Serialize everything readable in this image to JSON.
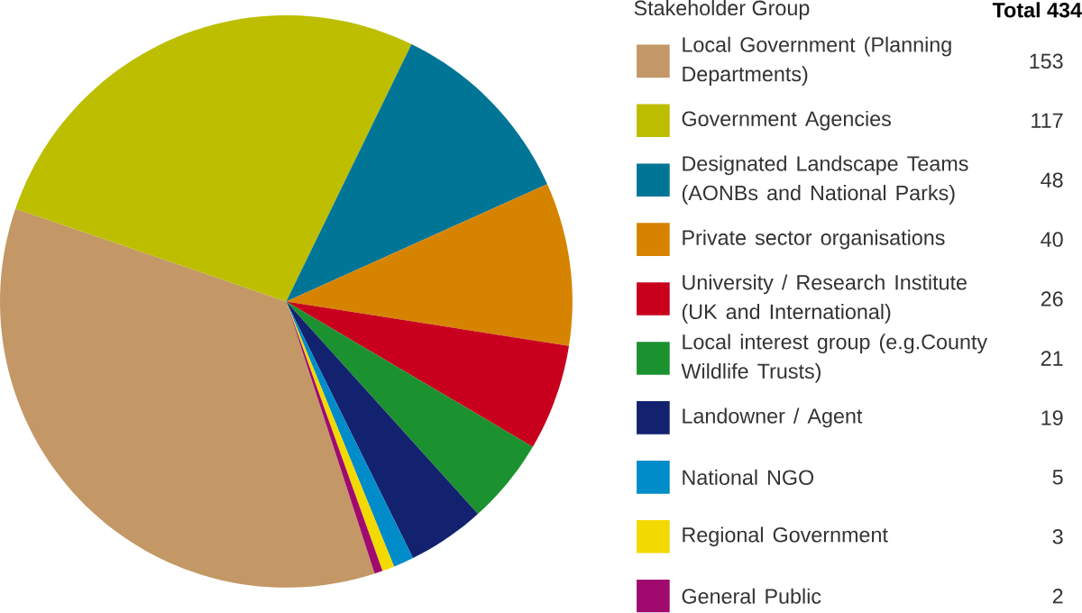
{
  "chart_data": {
    "type": "pie",
    "legend_title": "Stakeholder Group",
    "annotations": [
      "Total 434"
    ],
    "legend": "right",
    "data_labels": true,
    "categories": [
      "Local Government (Planning Departments)",
      "Government Agencies",
      "Designated Landscape Teams (AONBs and National Parks)",
      "Private sector organisations",
      "University / Research Institute (UK and International)",
      "Local interest group (e.g.County Wildlife Trusts)",
      "Landowner / Agent",
      "National NGO",
      "Regional Government",
      "General Public"
    ],
    "values": [
      153,
      117,
      48,
      40,
      26,
      21,
      19,
      5,
      3,
      2
    ],
    "colors": [
      "#c39866",
      "#bdbe00",
      "#007596",
      "#d68400",
      "#c8001e",
      "#1c912f",
      "#12226f",
      "#008bc9",
      "#f2d900",
      "#a00a6e"
    ]
  }
}
